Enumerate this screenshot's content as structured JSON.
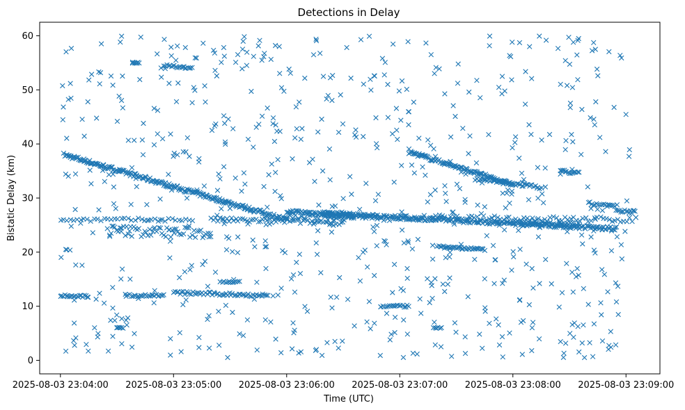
{
  "chart_data": {
    "type": "scatter",
    "title": "Detections in Delay",
    "xlabel": "Time (UTC)",
    "ylabel": "Bistatic Delay (km)",
    "x_start": "2025-08-03 23:03:53",
    "x_end": "2025-08-03 23:09:15",
    "xlim": [
      "2025-08-03 23:03:49",
      "2025-08-03 23:09:18"
    ],
    "ylim": [
      -2.5,
      62.5
    ],
    "x_ticks": [
      "2025-08-03 23:04:00",
      "2025-08-03 23:05:00",
      "2025-08-03 23:06:00",
      "2025-08-03 23:07:00",
      "2025-08-03 23:08:00",
      "2025-08-03 23:09:00"
    ],
    "y_ticks": [
      0,
      10,
      20,
      30,
      40,
      50,
      60
    ],
    "grid": false,
    "legend": false,
    "marker": "x",
    "color": "#1f77b4",
    "tracks": [
      {
        "type": "line",
        "t0": "2025-08-03 23:04:02",
        "t1": "2025-08-03 23:06:00",
        "y0": 38.0,
        "y1": 26.0,
        "n": 230,
        "jitter": 0.35
      },
      {
        "type": "line",
        "t0": "2025-08-03 23:06:00",
        "t1": "2025-08-03 23:08:55",
        "y0": 27.5,
        "y1": 24.3,
        "n": 290,
        "jitter": 0.35
      },
      {
        "type": "line",
        "t0": "2025-08-03 23:07:05",
        "t1": "2025-08-03 23:08:00",
        "y0": 38.5,
        "y1": 32.5,
        "n": 110,
        "jitter": 0.3
      },
      {
        "type": "line",
        "t0": "2025-08-03 23:06:00",
        "t1": "2025-08-03 23:09:05",
        "y0": 26.5,
        "y1": 26.0,
        "n": 120,
        "jitter": 0.5
      },
      {
        "type": "line",
        "t0": "2025-08-03 23:04:00",
        "t1": "2025-08-03 23:05:10",
        "y0": 26.0,
        "y1": 26.0,
        "n": 40,
        "jitter": 0.3
      },
      {
        "type": "line",
        "t0": "2025-08-03 23:05:20",
        "t1": "2025-08-03 23:06:30",
        "y0": 26.0,
        "y1": 25.5,
        "n": 60,
        "jitter": 0.4
      },
      {
        "type": "line",
        "t0": "2025-08-03 23:07:40",
        "t1": "2025-08-03 23:08:15",
        "y0": 33.5,
        "y1": 32.0,
        "n": 45,
        "jitter": 0.3
      },
      {
        "type": "line",
        "t0": "2025-08-03 23:07:20",
        "t1": "2025-08-03 23:07:45",
        "y0": 21.0,
        "y1": 20.5,
        "n": 35,
        "jitter": 0.2
      },
      {
        "type": "line",
        "t0": "2025-08-03 23:04:25",
        "t1": "2025-08-03 23:05:20",
        "y0": 24.0,
        "y1": 23.5,
        "n": 60,
        "jitter": 1.0
      },
      {
        "type": "line",
        "t0": "2025-08-03 23:04:00",
        "t1": "2025-08-03 23:04:15",
        "y0": 12.0,
        "y1": 11.8,
        "n": 20,
        "jitter": 0.2
      },
      {
        "type": "line",
        "t0": "2025-08-03 23:04:35",
        "t1": "2025-08-03 23:04:55",
        "y0": 12.0,
        "y1": 12.0,
        "n": 25,
        "jitter": 0.2
      },
      {
        "type": "line",
        "t0": "2025-08-03 23:05:00",
        "t1": "2025-08-03 23:05:50",
        "y0": 12.5,
        "y1": 12.0,
        "n": 60,
        "jitter": 0.3
      },
      {
        "type": "line",
        "t0": "2025-08-03 23:05:25",
        "t1": "2025-08-03 23:05:35",
        "y0": 14.5,
        "y1": 14.5,
        "n": 12,
        "jitter": 0.15
      },
      {
        "type": "line",
        "t0": "2025-08-03 23:04:55",
        "t1": "2025-08-03 23:05:10",
        "y0": 54.5,
        "y1": 54.0,
        "n": 20,
        "jitter": 0.2
      },
      {
        "type": "line",
        "t0": "2025-08-03 23:04:38",
        "t1": "2025-08-03 23:04:42",
        "y0": 55.0,
        "y1": 55.0,
        "n": 8,
        "jitter": 0.15
      },
      {
        "type": "line",
        "t0": "2025-08-03 23:04:30",
        "t1": "2025-08-03 23:04:33",
        "y0": 6.0,
        "y1": 6.0,
        "n": 6,
        "jitter": 0.1
      },
      {
        "type": "line",
        "t0": "2025-08-03 23:07:18",
        "t1": "2025-08-03 23:07:22",
        "y0": 6.0,
        "y1": 6.0,
        "n": 6,
        "jitter": 0.1
      },
      {
        "type": "line",
        "t0": "2025-08-03 23:06:50",
        "t1": "2025-08-03 23:07:05",
        "y0": 10.0,
        "y1": 10.0,
        "n": 18,
        "jitter": 0.2
      },
      {
        "type": "line",
        "t0": "2025-08-03 23:08:25",
        "t1": "2025-08-03 23:08:35",
        "y0": 35.0,
        "y1": 34.5,
        "n": 15,
        "jitter": 0.3
      },
      {
        "type": "line",
        "t0": "2025-08-03 23:08:40",
        "t1": "2025-08-03 23:08:55",
        "y0": 29.0,
        "y1": 28.5,
        "n": 18,
        "jitter": 0.3
      },
      {
        "type": "line",
        "t0": "2025-08-03 23:08:55",
        "t1": "2025-08-03 23:09:05",
        "y0": 27.5,
        "y1": 27.5,
        "n": 15,
        "jitter": 0.3
      },
      {
        "type": "line",
        "t0": "2025-08-03 23:08:00",
        "t1": "2025-08-03 23:08:35",
        "y0": 25.5,
        "y1": 25.0,
        "n": 45,
        "jitter": 0.4
      },
      {
        "type": "line",
        "t0": "2025-08-03 23:06:20",
        "t1": "2025-08-03 23:06:35",
        "y0": 27.0,
        "y1": 26.8,
        "n": 40,
        "jitter": 0.5
      }
    ],
    "noise": {
      "n": 720,
      "t_range": [
        "2025-08-03 23:04:00",
        "2025-08-03 23:09:02"
      ],
      "y_range": [
        0.5,
        60
      ],
      "seed": 7
    }
  }
}
